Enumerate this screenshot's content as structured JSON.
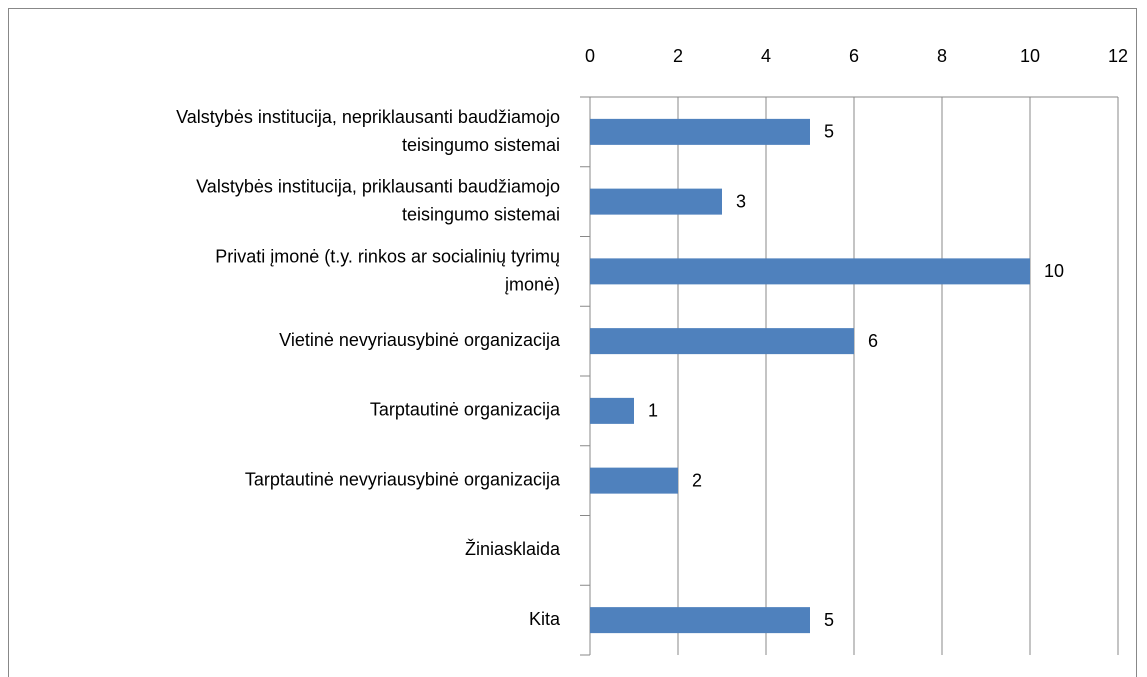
{
  "chart_data": {
    "type": "bar",
    "orientation": "horizontal",
    "categories": [
      "Valstybės institucija, nepriklausanti baudžiamojo\nteisingumo sistemai",
      "Valstybės institucija, priklausanti baudžiamojo\nteisingumo sistemai",
      "Privati įmonė (t.y. rinkos ar socialinių tyrimų\nįmonė)",
      "Vietinė nevyriausybinė organizacija",
      "Tarptautinė organizacija",
      "Tarptautinė nevyriausybinė organizacija",
      "Žiniasklaida",
      "Kita"
    ],
    "values": [
      5,
      3,
      10,
      6,
      1,
      2,
      null,
      5
    ],
    "color": "#4f81bd",
    "xlim": [
      0,
      12
    ],
    "xticks": [
      0,
      2,
      4,
      6,
      8,
      10,
      12
    ],
    "grid": true
  }
}
